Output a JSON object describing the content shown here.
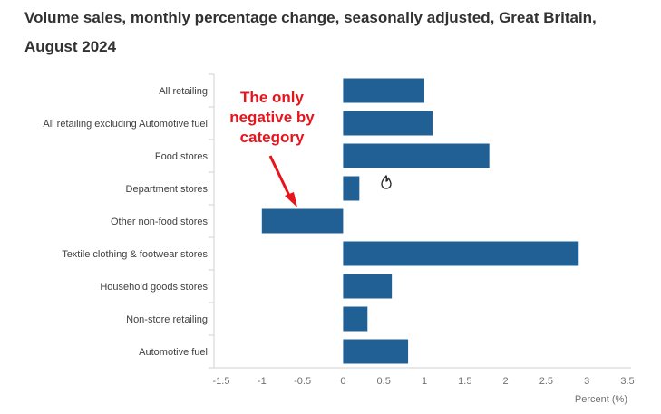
{
  "chart_data": {
    "type": "bar",
    "orientation": "horizontal",
    "title": "Volume sales, monthly percentage change, seasonally adjusted, Great Britain, August 2024",
    "categories": [
      "All retailing",
      "All retailing excluding Automotive fuel",
      "Food stores",
      "Department stores",
      "Other non-food stores",
      "Textile clothing & footwear stores",
      "Household goods stores",
      "Non-store retailing",
      "Automotive fuel"
    ],
    "values": [
      1.0,
      1.1,
      1.8,
      0.2,
      -1.0,
      2.9,
      0.6,
      0.3,
      0.8
    ],
    "xlabel": "Percent (%)",
    "xlim": [
      -1.5,
      3.5
    ],
    "xticks": [
      "-1.5",
      "-1",
      "-0.5",
      "0",
      "0.5",
      "1",
      "1.5",
      "2",
      "2.5",
      "3",
      "3.5"
    ],
    "grid": false,
    "bar_color": "#206095",
    "annotation": {
      "lines": [
        "The only",
        "negative by",
        "category"
      ],
      "color": "#e8141c"
    }
  }
}
